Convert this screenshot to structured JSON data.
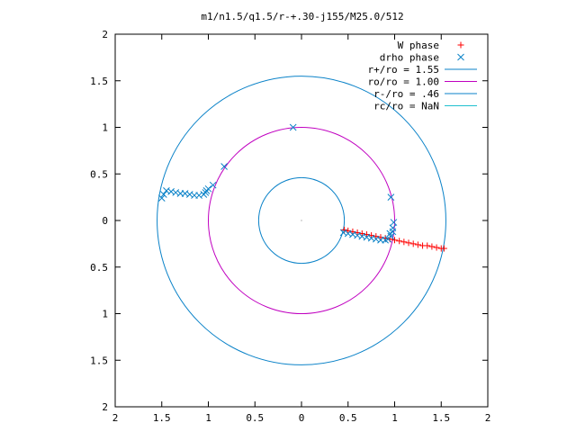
{
  "chart_data": {
    "type": "scatter",
    "title": "m1/n1.5/q1.5/r-+.30-j155/M25.0/512",
    "xlabel": "",
    "ylabel": "",
    "xlim": [
      2,
      -2
    ],
    "ylim": [
      -2,
      2
    ],
    "x_ticks": [
      {
        "value": 2,
        "label": "2"
      },
      {
        "value": 1.5,
        "label": "1.5"
      },
      {
        "value": 1,
        "label": "1"
      },
      {
        "value": 0.5,
        "label": "0.5"
      },
      {
        "value": 0,
        "label": "0"
      },
      {
        "value": -0.5,
        "label": "0.5"
      },
      {
        "value": -1,
        "label": "1"
      },
      {
        "value": -1.5,
        "label": "1.5"
      },
      {
        "value": -2,
        "label": "2"
      }
    ],
    "y_ticks": [
      {
        "value": 2,
        "label": "2"
      },
      {
        "value": 1.5,
        "label": "1.5"
      },
      {
        "value": 1,
        "label": "1"
      },
      {
        "value": 0.5,
        "label": "0.5"
      },
      {
        "value": 0,
        "label": "0"
      },
      {
        "value": -0.5,
        "label": "0.5"
      },
      {
        "value": -1,
        "label": "1"
      },
      {
        "value": -1.5,
        "label": "1.5"
      },
      {
        "value": -2,
        "label": "2"
      }
    ],
    "grid": false,
    "legend_position": "top-right",
    "series": [
      {
        "name": "W phase",
        "kind": "points",
        "marker": "plus",
        "color": "#ff0000",
        "x": [
          -0.46,
          -0.5,
          -0.55,
          -0.6,
          -0.65,
          -0.7,
          -0.75,
          -0.8,
          -0.85,
          -0.9,
          -0.95,
          -1.0,
          -1.05,
          -1.1,
          -1.15,
          -1.2,
          -1.25,
          -1.3,
          -1.35,
          -1.4,
          -1.45,
          -1.5,
          -1.53
        ],
        "y": [
          -0.1,
          -0.11,
          -0.12,
          -0.13,
          -0.14,
          -0.15,
          -0.16,
          -0.17,
          -0.18,
          -0.19,
          -0.2,
          -0.21,
          -0.22,
          -0.23,
          -0.24,
          -0.25,
          -0.26,
          -0.27,
          -0.27,
          -0.28,
          -0.29,
          -0.3,
          -0.3
        ]
      },
      {
        "name": "drho phase",
        "kind": "points",
        "marker": "cross",
        "color": "#0a82c8",
        "x": [
          -0.45,
          -0.5,
          -0.55,
          -0.6,
          -0.65,
          -0.7,
          -0.75,
          -0.8,
          -0.85,
          -0.9,
          -0.93,
          -0.96,
          -0.98,
          -0.99,
          -0.96,
          -0.98,
          -0.95,
          0.09,
          0.83,
          0.95,
          1.0,
          1.02,
          1.03,
          1.05,
          1.1,
          1.15,
          1.2,
          1.25,
          1.3,
          1.35,
          1.4,
          1.45,
          1.48,
          1.5
        ],
        "y": [
          -0.13,
          -0.14,
          -0.15,
          -0.16,
          -0.17,
          -0.18,
          -0.19,
          -0.2,
          -0.21,
          -0.21,
          -0.2,
          -0.17,
          -0.12,
          -0.02,
          0.25,
          -0.08,
          -0.14,
          1.0,
          0.58,
          0.38,
          0.34,
          0.32,
          0.3,
          0.28,
          0.27,
          0.27,
          0.28,
          0.29,
          0.29,
          0.3,
          0.31,
          0.32,
          0.28,
          0.24
        ]
      },
      {
        "name": "r+/ro = 1.55",
        "kind": "circle",
        "radius": 1.55,
        "color": "#0a82c8"
      },
      {
        "name": "ro/ro = 1.00",
        "kind": "circle",
        "radius": 1.0,
        "color": "#c000c0"
      },
      {
        "name": "r-/ro = .46",
        "kind": "circle",
        "radius": 0.46,
        "color": "#0a82c8"
      },
      {
        "name": "rc/ro = NaN",
        "kind": "circle",
        "radius": null,
        "color": "#20c0d0"
      }
    ]
  }
}
